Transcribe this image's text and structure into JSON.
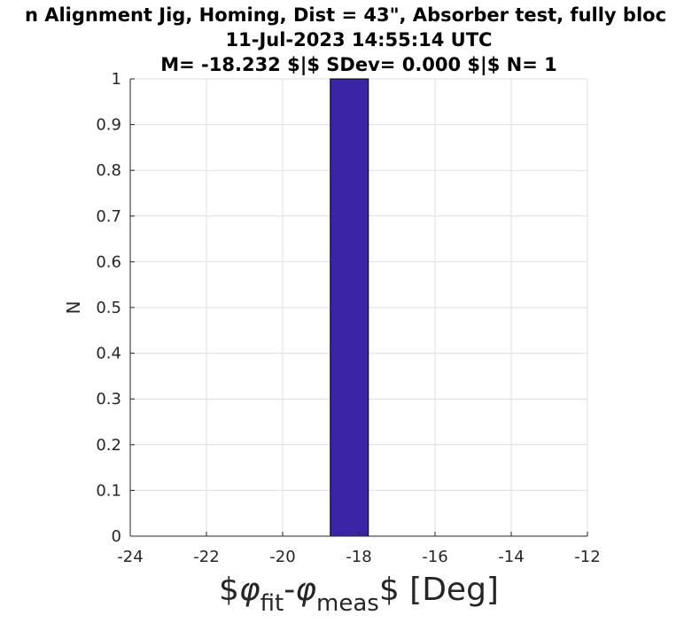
{
  "chart_data": {
    "type": "bar",
    "title_lines": [
      "n Alignment Jig, Homing, Dist = 43\", Absorber test, fully bloc",
      "11-Jul-2023 14:55:14 UTC",
      "M= -18.232 $|$ SDev= 0.000 $|$ N= 1"
    ],
    "xlabel": {
      "prefix": "$",
      "phi1": "φ",
      "sub1": "fit",
      "dash": "-",
      "phi2": "φ",
      "sub2": "meas",
      "suffix": "$ [Deg]"
    },
    "ylabel": "N",
    "xlim": [
      -24,
      -12
    ],
    "ylim": [
      0,
      1
    ],
    "xticks": [
      -24,
      -22,
      -20,
      -18,
      -16,
      -14,
      -12
    ],
    "yticks": [
      0,
      0.1,
      0.2,
      0.3,
      0.4,
      0.5,
      0.6,
      0.7,
      0.8,
      0.9,
      1
    ],
    "grid": true,
    "bars": [
      {
        "x_start": -18.75,
        "x_end": -17.75,
        "value": 1
      }
    ],
    "bar_color": "#3b24a5",
    "bar_edge_color": "#000000"
  }
}
